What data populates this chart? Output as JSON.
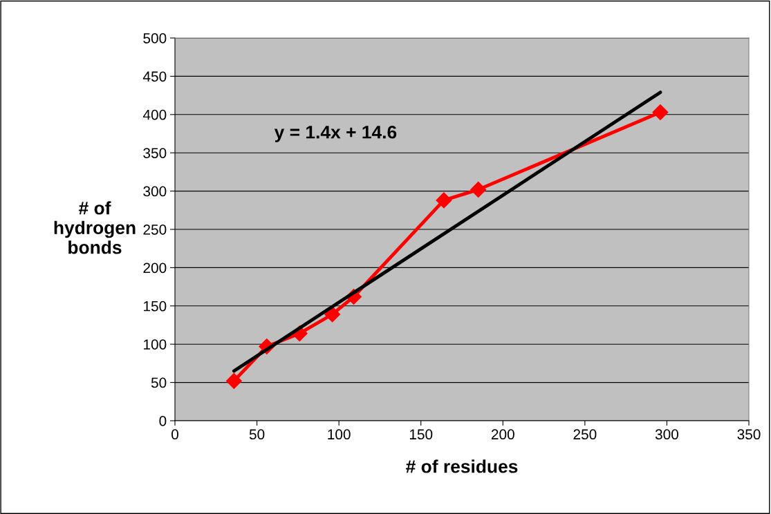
{
  "chart_data": {
    "type": "line",
    "xlabel": "# of residues",
    "ylabel": "# of\nhydrogen\nbonds",
    "annotations": [
      "y = 1.4x + 14.6"
    ],
    "series": [
      {
        "color": "#ff0000",
        "x": [
          36,
          56,
          76,
          96,
          109,
          164,
          185,
          296
        ],
        "values": [
          52,
          97,
          114,
          139,
          162,
          288,
          302,
          403
        ],
        "marker": "diamond"
      },
      {
        "color": "#000000",
        "x": [
          36,
          296
        ],
        "values": [
          65,
          429
        ],
        "marker": "none"
      }
    ],
    "xlim": [
      0,
      350
    ],
    "xticks": [
      0,
      50,
      100,
      150,
      200,
      250,
      300,
      350
    ],
    "ylim": [
      0,
      500
    ],
    "yticks": [
      0,
      50,
      100,
      150,
      200,
      250,
      300,
      350,
      400,
      450,
      500
    ],
    "grid": "y",
    "legend": false,
    "line_style": "solid"
  }
}
